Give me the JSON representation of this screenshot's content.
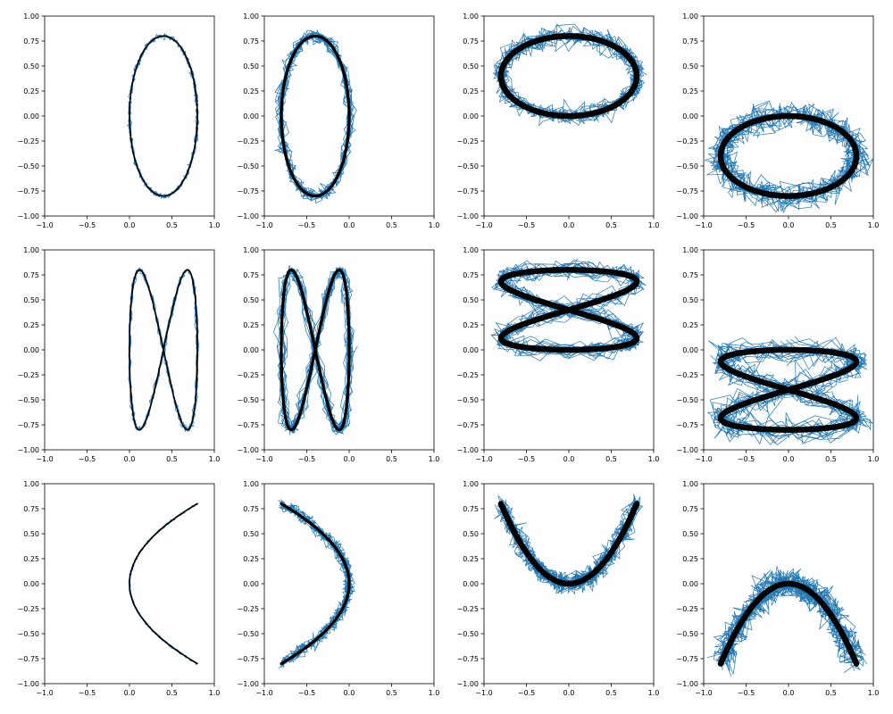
{
  "chart_data": {
    "type": "line",
    "grid": false,
    "rows": 3,
    "cols": 4,
    "xlim": [
      -1.0,
      1.0
    ],
    "ylim": [
      -1.0,
      1.0
    ],
    "xticks": [
      "−1.0",
      "−0.5",
      "0.0",
      "0.5",
      "1.0"
    ],
    "yticks": [
      "−1.00",
      "−0.75",
      "−0.50",
      "−0.25",
      "0.00",
      "0.25",
      "0.50",
      "0.75",
      "1.00"
    ],
    "xtick_values": [
      -1.0,
      -0.5,
      0.0,
      0.5,
      1.0
    ],
    "ytick_values": [
      -1.0,
      -0.75,
      -0.5,
      -0.25,
      0.0,
      0.25,
      0.5,
      0.75,
      1.0
    ],
    "series_colors": {
      "noisy_samples": "#1f77b4",
      "trajectory": "#000000"
    },
    "panels": [
      {
        "row": 0,
        "col": 0,
        "shape": "ellipse",
        "x_range": [
          0.0,
          0.8
        ],
        "y_range": [
          -0.8,
          0.8
        ],
        "noise": 0.01
      },
      {
        "row": 0,
        "col": 1,
        "shape": "ellipse",
        "x_range": [
          -0.8,
          0.0
        ],
        "y_range": [
          -0.8,
          0.8
        ],
        "noise": 0.03
      },
      {
        "row": 0,
        "col": 2,
        "shape": "ellipse",
        "x_range": [
          -0.8,
          0.8
        ],
        "y_range": [
          0.0,
          0.8
        ],
        "noise": 0.05
      },
      {
        "row": 0,
        "col": 3,
        "shape": "ellipse",
        "x_range": [
          -0.8,
          0.8
        ],
        "y_range": [
          -0.8,
          0.0
        ],
        "noise": 0.07
      },
      {
        "row": 1,
        "col": 0,
        "shape": "figure-eight-vertical",
        "x_range": [
          0.0,
          0.8
        ],
        "y_range": [
          -0.8,
          0.8
        ],
        "noise": 0.01
      },
      {
        "row": 1,
        "col": 1,
        "shape": "figure-eight-vertical",
        "x_range": [
          -0.8,
          0.0
        ],
        "y_range": [
          -0.8,
          0.8
        ],
        "noise": 0.03
      },
      {
        "row": 1,
        "col": 2,
        "shape": "figure-eight-horizontal",
        "x_range": [
          -0.8,
          0.8
        ],
        "y_range": [
          0.0,
          0.8
        ],
        "noise": 0.05
      },
      {
        "row": 1,
        "col": 3,
        "shape": "figure-eight-horizontal",
        "x_range": [
          -0.8,
          0.8
        ],
        "y_range": [
          -0.8,
          0.0
        ],
        "noise": 0.07
      },
      {
        "row": 2,
        "col": 0,
        "shape": "parabola-right",
        "vertex": [
          0.0,
          0.0
        ],
        "ends": [
          [
            0.8,
            0.8
          ],
          [
            0.8,
            -0.8
          ]
        ],
        "noise": 0.005
      },
      {
        "row": 2,
        "col": 1,
        "shape": "parabola-left",
        "vertex": [
          0.0,
          0.0
        ],
        "ends": [
          [
            -0.8,
            0.8
          ],
          [
            -0.8,
            -0.8
          ]
        ],
        "noise": 0.03
      },
      {
        "row": 2,
        "col": 2,
        "shape": "parabola-up",
        "vertex": [
          0.0,
          0.0
        ],
        "ends": [
          [
            -0.8,
            0.8
          ],
          [
            0.8,
            0.8
          ]
        ],
        "noise": 0.05
      },
      {
        "row": 2,
        "col": 3,
        "shape": "parabola-down",
        "vertex": [
          0.0,
          0.0
        ],
        "ends": [
          [
            -0.8,
            -0.8
          ],
          [
            0.8,
            -0.8
          ]
        ],
        "noise": 0.07
      }
    ]
  }
}
